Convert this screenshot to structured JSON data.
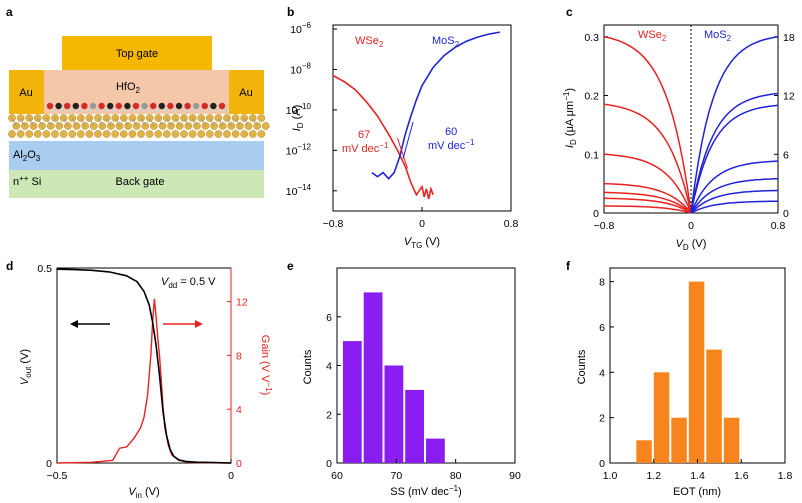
{
  "colors": {
    "wse2": "#e8231f",
    "mos2": "#1f23d8",
    "vout": "#000000",
    "gain": "#e8231f",
    "hist_purple": "#8a1ef0",
    "hist_orange": "#f7841c",
    "topgate": "#f6b700",
    "hfo2": "#f5c7a9",
    "al2o3": "#a9cdee",
    "si": "#cde7b6",
    "au": "#f2b30a"
  },
  "panels": {
    "a": "a",
    "b": "b",
    "c": "c",
    "d": "d",
    "e": "e",
    "f": "f"
  },
  "panel_a": {
    "top_gate": "Top gate",
    "hfo2": "HfO",
    "hfo2_sub": "2",
    "au_left": "Au",
    "au_right": "Au",
    "al2o3": "Al",
    "al2o3_sub1": "2",
    "al2o3_o": "O",
    "al2o3_sub2": "3",
    "si_prefix": "n",
    "si_sup": "++",
    "si_suffix": " Si",
    "back_gate": "Back gate"
  },
  "chart_data": [
    {
      "id": "b",
      "type": "line",
      "title": "",
      "xlabel": "V",
      "xlabel_sub": "TG",
      "xlabel_unit": " (V)",
      "ylabel": "I",
      "ylabel_sub": "D",
      "ylabel_unit": " (A)",
      "xlim": [
        -0.8,
        0.8
      ],
      "ylim_log": [
        -15,
        -5.8
      ],
      "x_ticks": [
        {
          "v": -0.8,
          "t": "−0.8"
        },
        {
          "v": 0,
          "t": "0"
        },
        {
          "v": 0.8,
          "t": "0.8"
        }
      ],
      "y_ticks": [
        {
          "e": -6,
          "t": "10",
          "sup": "−6"
        },
        {
          "e": -8,
          "t": "10",
          "sup": "−8"
        },
        {
          "e": -10,
          "t": "10",
          "sup": "−10"
        },
        {
          "e": -12,
          "t": "10",
          "sup": "−12"
        },
        {
          "e": -14,
          "t": "10",
          "sup": "−14"
        }
      ],
      "legend": {
        "wse2": "WSe",
        "wse2_sub": "2",
        "mos2": "MoS",
        "mos2_sub": "2"
      },
      "annotations": {
        "wse2_ss": "67",
        "wse2_unit": "mV dec",
        "wse2_sup": "−1",
        "mos2_ss": "60",
        "mos2_unit": "mV dec",
        "mos2_sup": "−1"
      },
      "series": [
        {
          "name": "WSe2",
          "x": [
            -0.8,
            -0.7,
            -0.6,
            -0.5,
            -0.4,
            -0.3,
            -0.22,
            -0.15,
            -0.1,
            -0.05,
            0.0,
            0.02,
            0.04,
            0.06,
            0.08,
            0.1
          ],
          "log10_y": [
            -8.3,
            -8.6,
            -9.0,
            -9.6,
            -10.3,
            -11.2,
            -12.0,
            -12.8,
            -13.6,
            -14.2,
            -13.8,
            -14.3,
            -13.9,
            -14.4,
            -13.9,
            -14.2
          ]
        },
        {
          "name": "MoS2",
          "x": [
            -0.45,
            -0.4,
            -0.35,
            -0.3,
            -0.25,
            -0.2,
            -0.15,
            -0.1,
            -0.05,
            0.0,
            0.1,
            0.2,
            0.3,
            0.4,
            0.5,
            0.6,
            0.7
          ],
          "log10_y": [
            -13.1,
            -13.3,
            -13.1,
            -13.4,
            -13.1,
            -12.3,
            -11.2,
            -10.3,
            -9.5,
            -8.8,
            -7.9,
            -7.3,
            -6.9,
            -6.6,
            -6.4,
            -6.25,
            -6.15
          ]
        }
      ]
    },
    {
      "id": "c",
      "type": "line",
      "xlabel": "V",
      "xlabel_sub": "D",
      "xlabel_unit": " (V)",
      "ylabel": "I",
      "ylabel_sub": "D",
      "ylabel_unit": " (μA μm",
      "ylabel_sup": "−1",
      "ylabel_close": ")",
      "xlim": [
        -0.8,
        0.8
      ],
      "left_ylim": [
        0,
        0.32
      ],
      "right_ylim": [
        0,
        19.2
      ],
      "x_ticks": [
        {
          "v": -0.8,
          "t": "−0.8"
        },
        {
          "v": 0,
          "t": "0"
        },
        {
          "v": 0.8,
          "t": "0.8"
        }
      ],
      "left_ticks": [
        {
          "v": 0,
          "t": "0"
        },
        {
          "v": 0.1,
          "t": "0.1"
        },
        {
          "v": 0.2,
          "t": "0.2"
        },
        {
          "v": 0.3,
          "t": "0.3"
        }
      ],
      "right_ticks": [
        {
          "v": 0,
          "t": "0"
        },
        {
          "v": 6,
          "t": "6"
        },
        {
          "v": 12,
          "t": "12"
        },
        {
          "v": 18,
          "t": "18"
        }
      ],
      "legend": {
        "wse2": "WSe",
        "wse2_sub": "2",
        "mos2": "MoS",
        "mos2_sub": "2"
      },
      "wse2_sat": [
        0.3,
        0.185,
        0.1,
        0.05,
        0.035,
        0.025,
        0.012
      ],
      "mos2_sat": [
        18.0,
        12.2,
        11.0,
        5.3,
        3.5,
        2.3,
        1.2
      ]
    },
    {
      "id": "d",
      "type": "line",
      "xlabel": "V",
      "xlabel_sub": "in",
      "xlabel_unit": " (V)",
      "ylabel": "V",
      "ylabel_sub": "out",
      "ylabel_unit": " (V)",
      "right_ylabel": "Gain (V V",
      "right_ylabel_sup": "−1",
      "right_ylabel_close": ")",
      "xlim": [
        -0.5,
        0
      ],
      "left_ylim": [
        0,
        0.5
      ],
      "right_ylim": [
        0,
        14.5
      ],
      "x_ticks": [
        {
          "v": -0.5,
          "t": "−0.5"
        },
        {
          "v": 0,
          "t": "0"
        }
      ],
      "left_ticks": [
        {
          "v": 0,
          "t": "0"
        },
        {
          "v": 0.5,
          "t": "0.5"
        }
      ],
      "right_ticks": [
        {
          "v": 0,
          "t": "0"
        },
        {
          "v": 4,
          "t": "4"
        },
        {
          "v": 8,
          "t": "8"
        },
        {
          "v": 12,
          "t": "12"
        }
      ],
      "vdd_label": "V",
      "vdd_sub": "dd",
      "vdd_value": " = 0.5 V",
      "series": [
        {
          "name": "Vout",
          "x": [
            -0.5,
            -0.45,
            -0.4,
            -0.35,
            -0.3,
            -0.27,
            -0.25,
            -0.235,
            -0.225,
            -0.215,
            -0.205,
            -0.195,
            -0.185,
            -0.175,
            -0.165,
            -0.15,
            -0.13,
            -0.1,
            -0.05,
            0.0
          ],
          "y": [
            0.497,
            0.496,
            0.494,
            0.49,
            0.48,
            0.465,
            0.44,
            0.405,
            0.36,
            0.3,
            0.22,
            0.13,
            0.07,
            0.035,
            0.018,
            0.008,
            0.004,
            0.002,
            0.001,
            0.0
          ]
        },
        {
          "name": "Gain",
          "x": [
            -0.5,
            -0.4,
            -0.34,
            -0.32,
            -0.3,
            -0.28,
            -0.26,
            -0.25,
            -0.24,
            -0.235,
            -0.23,
            -0.225,
            -0.22,
            -0.215,
            -0.21,
            -0.205,
            -0.2,
            -0.195,
            -0.19,
            -0.18,
            -0.17,
            -0.15,
            -0.12,
            -0.08,
            0.0
          ],
          "y": [
            0.0,
            0.05,
            0.4,
            0.8,
            1.2,
            1.8,
            2.6,
            3.4,
            5.0,
            6.5,
            8.2,
            10.6,
            12.2,
            10.8,
            9.2,
            7.8,
            6.0,
            4.1,
            2.6,
            1.3,
            0.6,
            0.2,
            0.05,
            0.02,
            0.0
          ]
        }
      ]
    },
    {
      "id": "e",
      "type": "bar",
      "xlabel": "SS (mV dec",
      "xlabel_sup": "−1",
      "xlabel_close": ")",
      "ylabel": "Counts",
      "xlim": [
        60,
        90
      ],
      "ylim": [
        0,
        8
      ],
      "x_ticks": [
        {
          "v": 60,
          "t": "60"
        },
        {
          "v": 70,
          "t": "70"
        },
        {
          "v": 80,
          "t": "80"
        },
        {
          "v": 90,
          "t": "90"
        }
      ],
      "y_ticks": [
        {
          "v": 0,
          "t": "0"
        },
        {
          "v": 2,
          "t": "2"
        },
        {
          "v": 4,
          "t": "4"
        },
        {
          "v": 6,
          "t": "6"
        }
      ],
      "bin_width": 3.5,
      "bin_starts": [
        61.0,
        64.5,
        68.0,
        71.5,
        75.0,
        78.5
      ],
      "values": [
        5,
        7,
        4,
        3,
        1,
        0
      ]
    },
    {
      "id": "f",
      "type": "bar",
      "xlabel": "EOT (nm)",
      "ylabel": "Counts",
      "xlim": [
        1.0,
        1.8
      ],
      "ylim": [
        0,
        8.6
      ],
      "x_ticks": [
        {
          "v": 1.0,
          "t": "1.0"
        },
        {
          "v": 1.2,
          "t": "1.2"
        },
        {
          "v": 1.4,
          "t": "1.4"
        },
        {
          "v": 1.6,
          "t": "1.6"
        },
        {
          "v": 1.8,
          "t": "1.8"
        }
      ],
      "y_ticks": [
        {
          "v": 0,
          "t": "0"
        },
        {
          "v": 2,
          "t": "2"
        },
        {
          "v": 4,
          "t": "4"
        },
        {
          "v": 6,
          "t": "6"
        },
        {
          "v": 8,
          "t": "8"
        }
      ],
      "bin_width": 0.08,
      "bin_starts": [
        1.12,
        1.2,
        1.28,
        1.36,
        1.44,
        1.52
      ],
      "values": [
        1,
        4,
        2,
        8,
        5,
        2
      ]
    }
  ]
}
